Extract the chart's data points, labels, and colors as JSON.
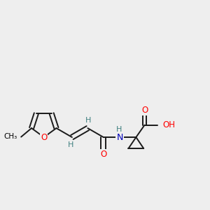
{
  "bg_color": "#eeeeee",
  "atom_color_O": "#ff0000",
  "atom_color_N": "#0000bb",
  "atom_color_H": "#408080",
  "bond_color": "#1a1a1a",
  "bond_width": 1.4,
  "dbo": 0.012,
  "figsize": [
    3.0,
    3.0
  ],
  "dpi": 100,
  "xlim": [
    0.0,
    1.0
  ],
  "ylim": [
    0.25,
    0.85
  ]
}
